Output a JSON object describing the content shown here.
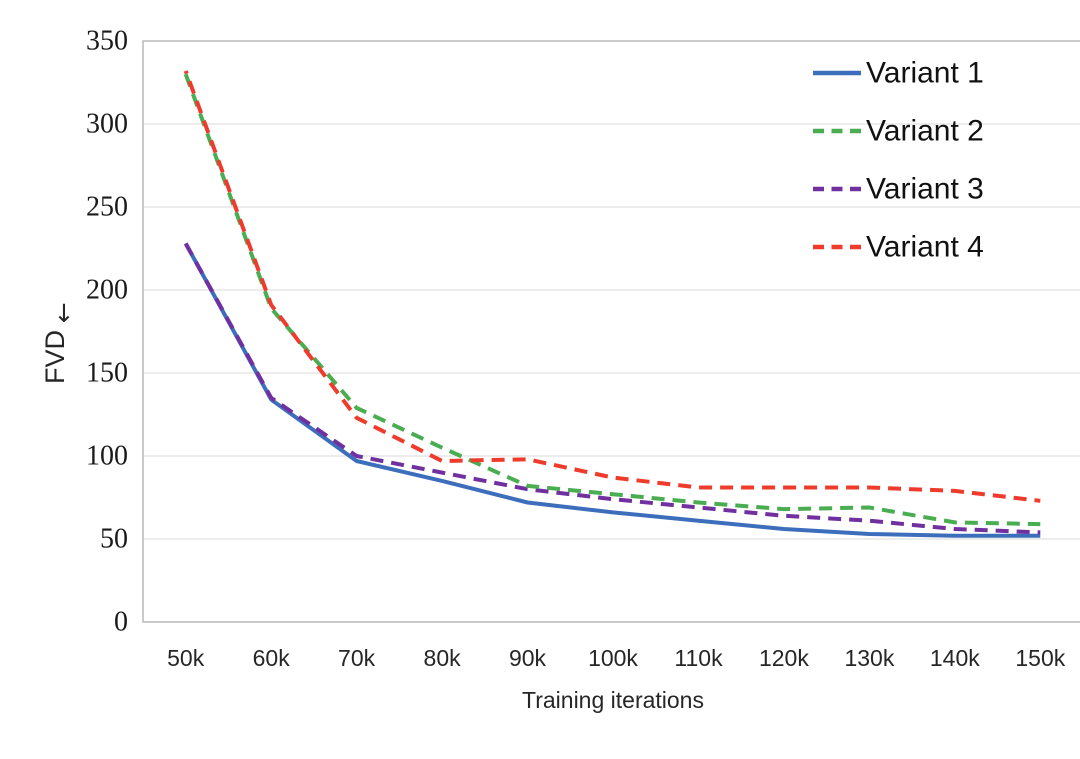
{
  "chart_data": {
    "type": "line",
    "title": "",
    "xlabel": "Training iterations",
    "ylabel": "FVD↓",
    "ylabel_text": "FVD",
    "ylabel_arrow": "↓",
    "categories": [
      "50k",
      "60k",
      "70k",
      "80k",
      "90k",
      "100k",
      "110k",
      "120k",
      "130k",
      "140k",
      "150k"
    ],
    "ylim": [
      0,
      350
    ],
    "ytick_step": 50,
    "ytick_labels": [
      "0",
      "50",
      "100",
      "150",
      "200",
      "250",
      "300",
      "350"
    ],
    "grid": "horizontal-only",
    "legend_position": "top-right-inside",
    "series": [
      {
        "name": "Variant 1",
        "color": "#3d6ebc",
        "style": "solid",
        "values": [
          228,
          134,
          97,
          85,
          72,
          66,
          61,
          56,
          53,
          52,
          52
        ]
      },
      {
        "name": "Variant 2",
        "color": "#4aad52",
        "style": "dashed",
        "values": [
          330,
          189,
          129,
          105,
          82,
          77,
          72,
          68,
          69,
          60,
          59
        ]
      },
      {
        "name": "Variant 3",
        "color": "#7030a0",
        "style": "dashed",
        "values": [
          228,
          135,
          100,
          90,
          80,
          74,
          69,
          64,
          61,
          56,
          54
        ]
      },
      {
        "name": "Variant 4",
        "color": "#ef3b2c",
        "style": "dashed",
        "values": [
          332,
          191,
          123,
          97,
          98,
          87,
          81,
          81,
          81,
          79,
          73
        ]
      }
    ]
  }
}
